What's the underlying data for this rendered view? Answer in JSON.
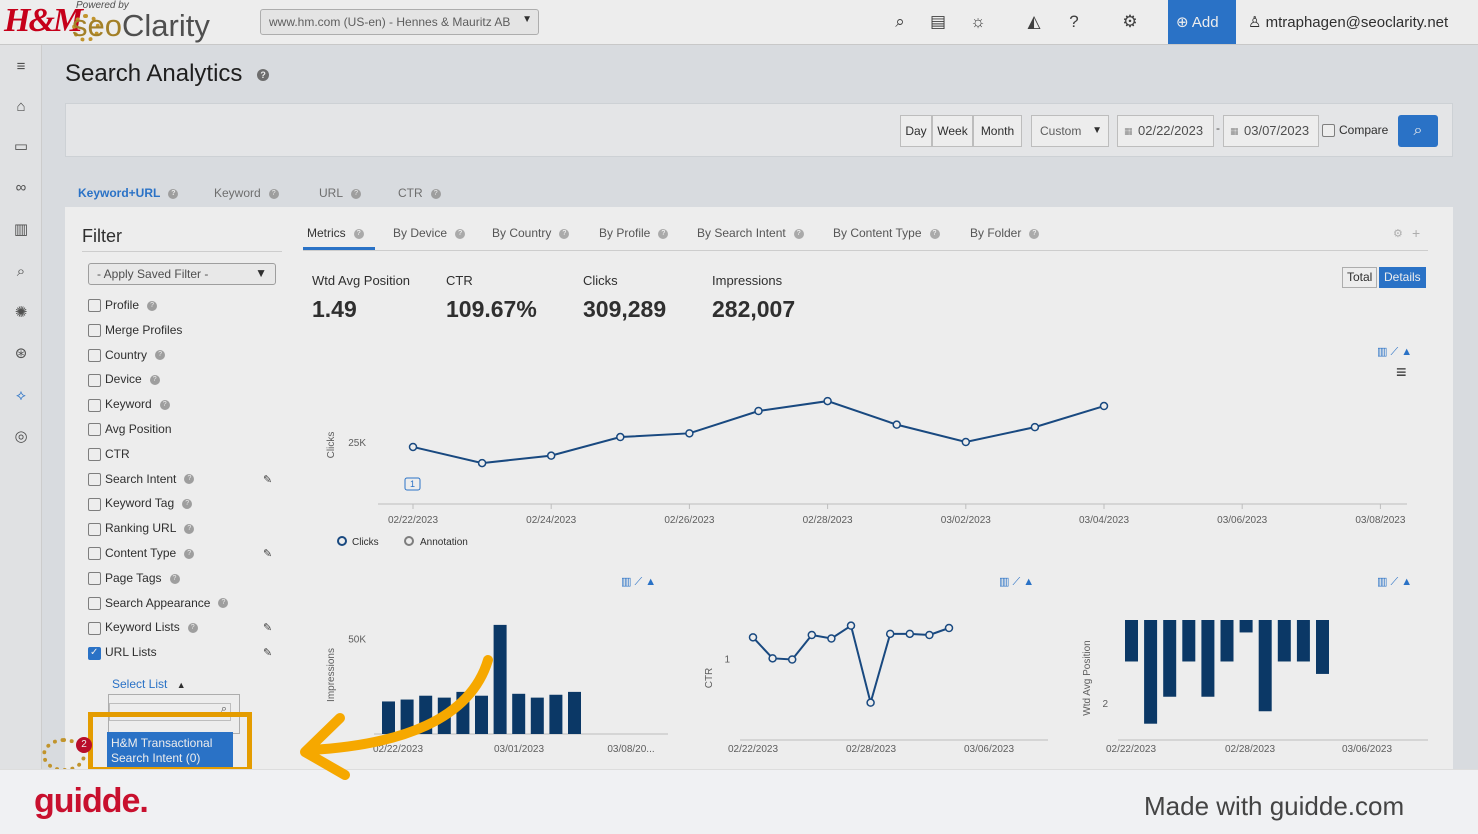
{
  "brand": {
    "hm": "H&M",
    "powered_by": "Powered by",
    "seo": "seo",
    "clarity": "Clarity"
  },
  "site_selector": {
    "value": "www.hm.com (US-en) - Hennes & Mauritz AB"
  },
  "top_nav": {
    "add_label": "Add",
    "user_email": "mtraphagen@seoclarity.net"
  },
  "page": {
    "title": "Search Analytics"
  },
  "date_bar": {
    "day": "Day",
    "week": "Week",
    "month": "Month",
    "range_type": "Custom",
    "start_date": "02/22/2023",
    "separator": "-",
    "end_date": "03/07/2023",
    "compare_label": "Compare"
  },
  "main_tabs": [
    {
      "label": "Keyword+URL"
    },
    {
      "label": "Keyword"
    },
    {
      "label": "URL"
    },
    {
      "label": "CTR"
    }
  ],
  "filter": {
    "title": "Filter",
    "saved_filter_placeholder": "- Apply Saved Filter -",
    "items": [
      {
        "label": "Profile",
        "checked": false
      },
      {
        "label": "Merge Profiles",
        "checked": false
      },
      {
        "label": "Country",
        "checked": false
      },
      {
        "label": "Device",
        "checked": false
      },
      {
        "label": "Keyword",
        "checked": false
      },
      {
        "label": "Avg Position",
        "checked": false
      },
      {
        "label": "CTR",
        "checked": false
      },
      {
        "label": "Search Intent",
        "checked": false
      },
      {
        "label": "Keyword Tag",
        "checked": false
      },
      {
        "label": "Ranking URL",
        "checked": false
      },
      {
        "label": "Content Type",
        "checked": false
      },
      {
        "label": "Page Tags",
        "checked": false
      },
      {
        "label": "Search Appearance",
        "checked": false
      },
      {
        "label": "Keyword Lists",
        "checked": false
      },
      {
        "label": "URL Lists",
        "checked": true
      }
    ],
    "select_list_label": "Select List",
    "list_option": "H&M Transactional Search Intent (0)",
    "badge_count": "2"
  },
  "sub_tabs": [
    {
      "label": "Metrics"
    },
    {
      "label": "By Device"
    },
    {
      "label": "By Country"
    },
    {
      "label": "By Profile"
    },
    {
      "label": "By Search Intent"
    },
    {
      "label": "By Content Type"
    },
    {
      "label": "By Folder"
    }
  ],
  "metrics": {
    "wtd_avg_position": {
      "label": "Wtd Avg Position",
      "value": "1.49"
    },
    "ctr": {
      "label": "CTR",
      "value": "109.67%"
    },
    "clicks": {
      "label": "Clicks",
      "value": "309,289"
    },
    "impressions": {
      "label": "Impressions",
      "value": "282,007"
    }
  },
  "view_toggle": {
    "total": "Total",
    "details": "Details"
  },
  "chart_data": [
    {
      "type": "line",
      "ylabel": "Clicks",
      "y_tick_labels": [
        "25K"
      ],
      "x_tick_labels": [
        "02/22/2023",
        "02/24/2023",
        "02/26/2023",
        "02/28/2023",
        "03/02/2023",
        "03/04/2023",
        "03/06/2023",
        "03/08/2023"
      ],
      "x": [
        "02/22/2023",
        "02/23/2023",
        "02/24/2023",
        "02/25/2023",
        "02/26/2023",
        "02/27/2023",
        "02/28/2023",
        "03/01/2023",
        "03/02/2023",
        "03/03/2023",
        "03/04/2023"
      ],
      "series": [
        {
          "name": "Clicks",
          "values": [
            24600,
            23300,
            23900,
            25400,
            25700,
            27500,
            28300,
            26400,
            25000,
            26200,
            27900
          ]
        }
      ],
      "legend": [
        "Clicks",
        "Annotation"
      ],
      "annotation_marker": "1"
    },
    {
      "type": "bar",
      "ylabel": "Impressions",
      "y_tick_labels": [
        "50K"
      ],
      "x_tick_labels": [
        "02/22/2023",
        "03/01/2023",
        "03/08/20..."
      ],
      "values": [
        17000,
        18000,
        20000,
        19000,
        22000,
        20000,
        57000,
        21000,
        19000,
        20500,
        22000
      ]
    },
    {
      "type": "line",
      "ylabel": "CTR",
      "y_tick_labels": [
        "1"
      ],
      "x_tick_labels": [
        "02/22/2023",
        "02/28/2023",
        "03/06/2023"
      ],
      "values": [
        1.18,
        1.0,
        0.99,
        1.2,
        1.17,
        1.28,
        0.62,
        1.21,
        1.21,
        1.2,
        1.26
      ]
    },
    {
      "type": "bar",
      "ylabel": "Wtd Avg Position",
      "y_tick_labels": [
        "2"
      ],
      "x_tick_labels": [
        "02/22/2023",
        "02/28/2023",
        "03/06/2023"
      ],
      "values": [
        1.0,
        2.5,
        1.85,
        1.0,
        1.85,
        1.0,
        0.3,
        2.2,
        1.0,
        1.0,
        1.3
      ]
    }
  ],
  "footer": {
    "logo": "guidde.",
    "made_with": "Made with guidde.com"
  }
}
